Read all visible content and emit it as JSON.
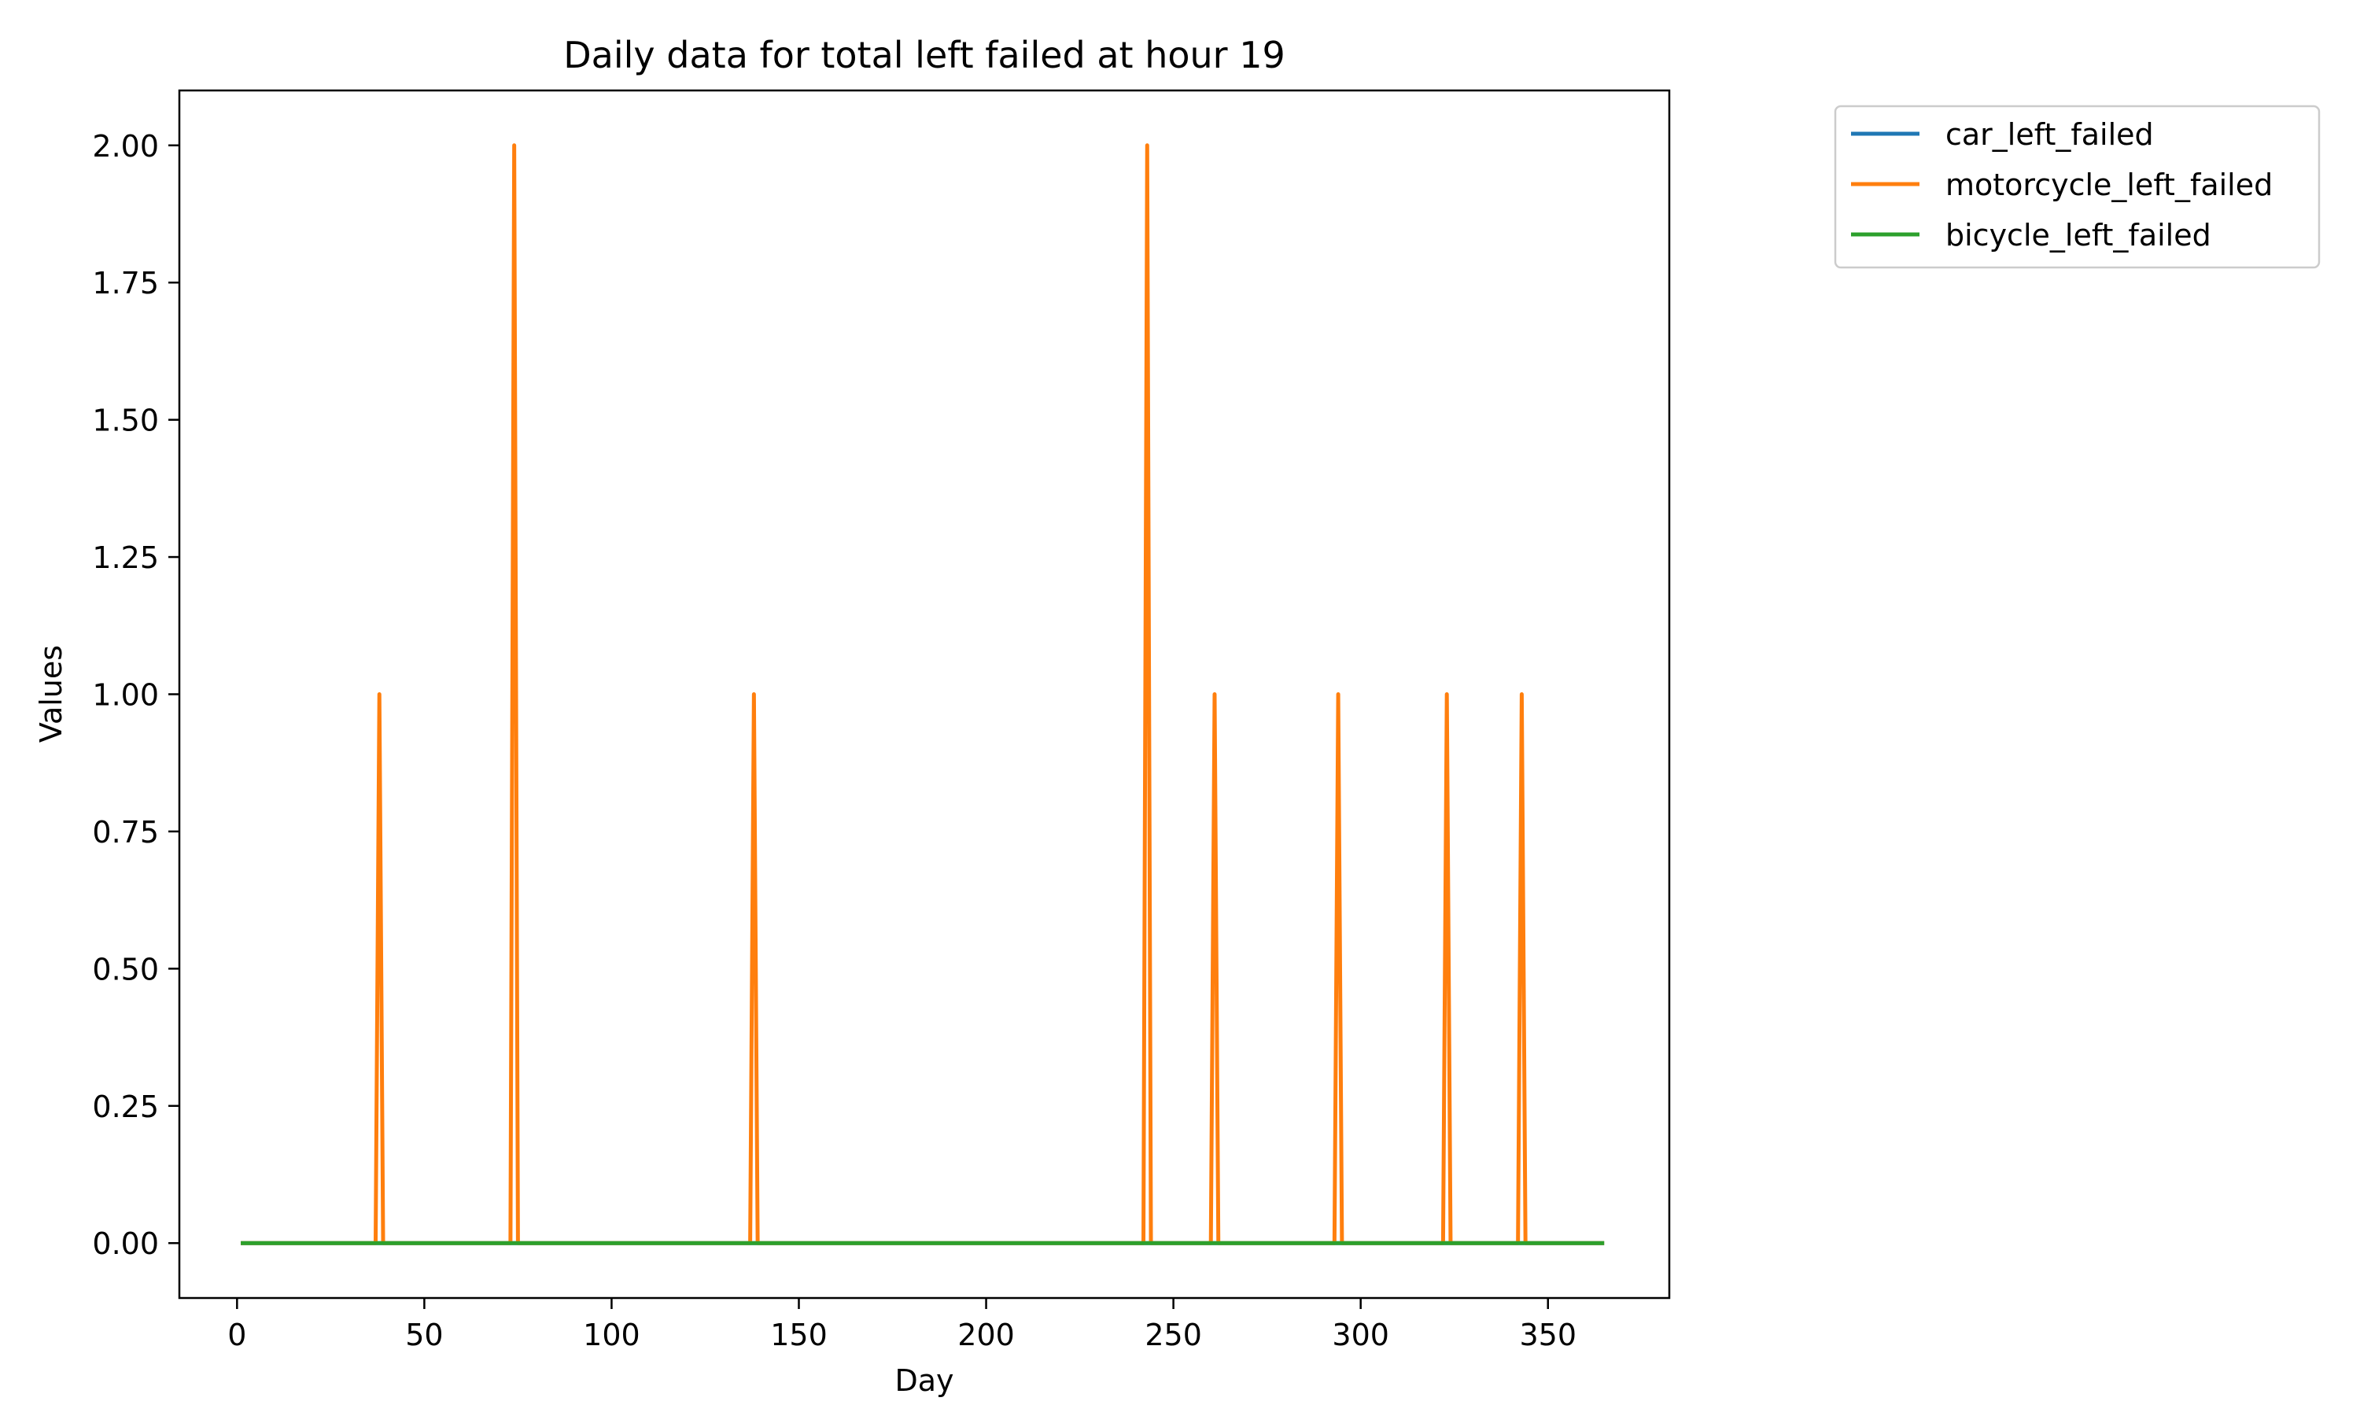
{
  "chart_data": {
    "type": "line",
    "title": "Daily data for total left failed at hour 19",
    "xlabel": "Day",
    "ylabel": "Values",
    "xlim": [
      -15.4,
      382.4
    ],
    "ylim": [
      -0.1,
      2.1
    ],
    "xticks": [
      0,
      50,
      100,
      150,
      200,
      250,
      300,
      350
    ],
    "yticks": [
      0.0,
      0.25,
      0.5,
      0.75,
      1.0,
      1.25,
      1.5,
      1.75,
      2.0
    ],
    "ytick_labels": [
      "0.00",
      "0.25",
      "0.50",
      "0.75",
      "1.00",
      "1.25",
      "1.50",
      "1.75",
      "2.00"
    ],
    "x_range": [
      1,
      365
    ],
    "grid": false,
    "legend_position": "outside top-right",
    "series": [
      {
        "name": "car_left_failed",
        "color": "#1f77b4",
        "spikes": []
      },
      {
        "name": "motorcycle_left_failed",
        "color": "#ff7f0e",
        "spikes": [
          {
            "x": 38,
            "y": 1
          },
          {
            "x": 74,
            "y": 2
          },
          {
            "x": 138,
            "y": 1
          },
          {
            "x": 243,
            "y": 2
          },
          {
            "x": 261,
            "y": 1
          },
          {
            "x": 294,
            "y": 1
          },
          {
            "x": 323,
            "y": 1
          },
          {
            "x": 343,
            "y": 1
          }
        ]
      },
      {
        "name": "bicycle_left_failed",
        "color": "#2ca02c",
        "spikes": []
      }
    ]
  }
}
